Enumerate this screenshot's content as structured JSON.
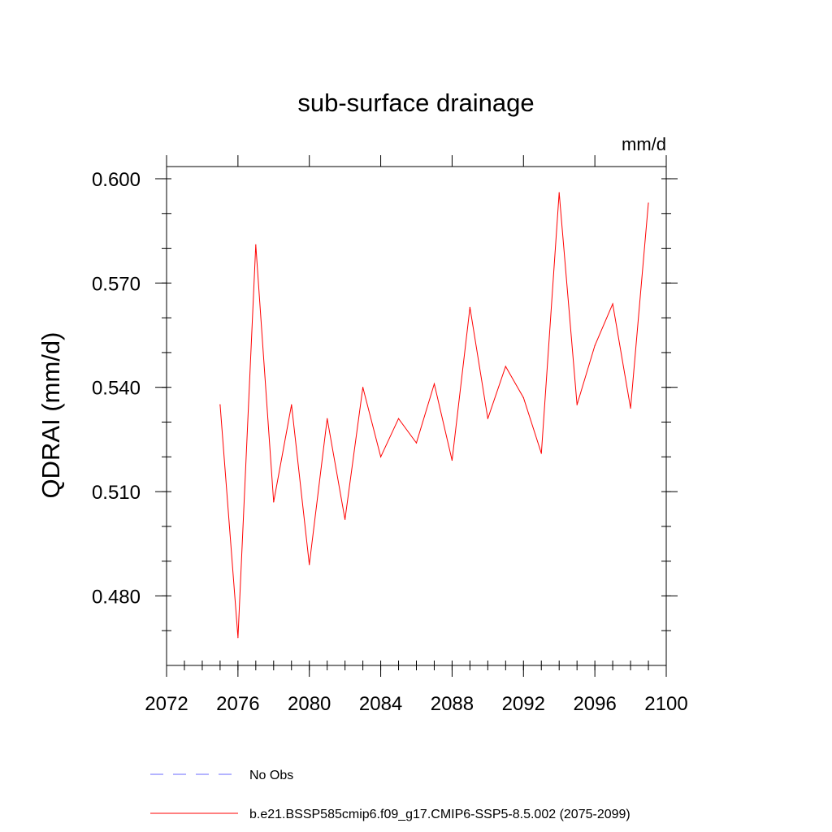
{
  "chart_data": {
    "type": "line",
    "title": "sub-surface drainage",
    "units": "mm/d",
    "ylabel": "QDRAI  (mm/d)",
    "xlabel": "",
    "xlim": [
      2072,
      2100
    ],
    "ylim": [
      0.46,
      0.6035
    ],
    "x_major_ticks": [
      2072,
      2076,
      2080,
      2084,
      2088,
      2092,
      2096,
      2100
    ],
    "x_major_tick_labels": [
      "2072",
      "2076",
      "2080",
      "2084",
      "2088",
      "2092",
      "2096",
      "2100"
    ],
    "x_minor_step": 1,
    "y_major_ticks": [
      0.48,
      0.51,
      0.54,
      0.57,
      0.6
    ],
    "y_major_tick_labels": [
      "0.480",
      "0.510",
      "0.540",
      "0.570",
      "0.600"
    ],
    "y_minor_step": 0.01,
    "series": [
      {
        "name": "b.e21.BSSP585cmip6.f09_g17.CMIP6-SSP5-8.5.002 (2075-2099)",
        "color": "#ff0000",
        "style": "solid",
        "x": [
          2075,
          2076,
          2077,
          2078,
          2079,
          2080,
          2081,
          2082,
          2083,
          2084,
          2085,
          2086,
          2087,
          2088,
          2089,
          2090,
          2091,
          2092,
          2093,
          2094,
          2095,
          2096,
          2097,
          2098,
          2099
        ],
        "y": [
          0.535,
          0.468,
          0.581,
          0.507,
          0.535,
          0.489,
          0.531,
          0.502,
          0.54,
          0.52,
          0.531,
          0.524,
          0.541,
          0.519,
          0.563,
          0.531,
          0.546,
          0.537,
          0.521,
          0.596,
          0.535,
          0.552,
          0.564,
          0.534,
          0.593
        ]
      }
    ],
    "legend": [
      {
        "label": "No Obs",
        "color": "#6a6aff",
        "style": "dashed"
      },
      {
        "label": "b.e21.BSSP585cmip6.f09_g17.CMIP6-SSP5-8.5.002 (2075-2099)",
        "color": "#ff0000",
        "style": "solid"
      }
    ],
    "legend_position": "bottom"
  }
}
